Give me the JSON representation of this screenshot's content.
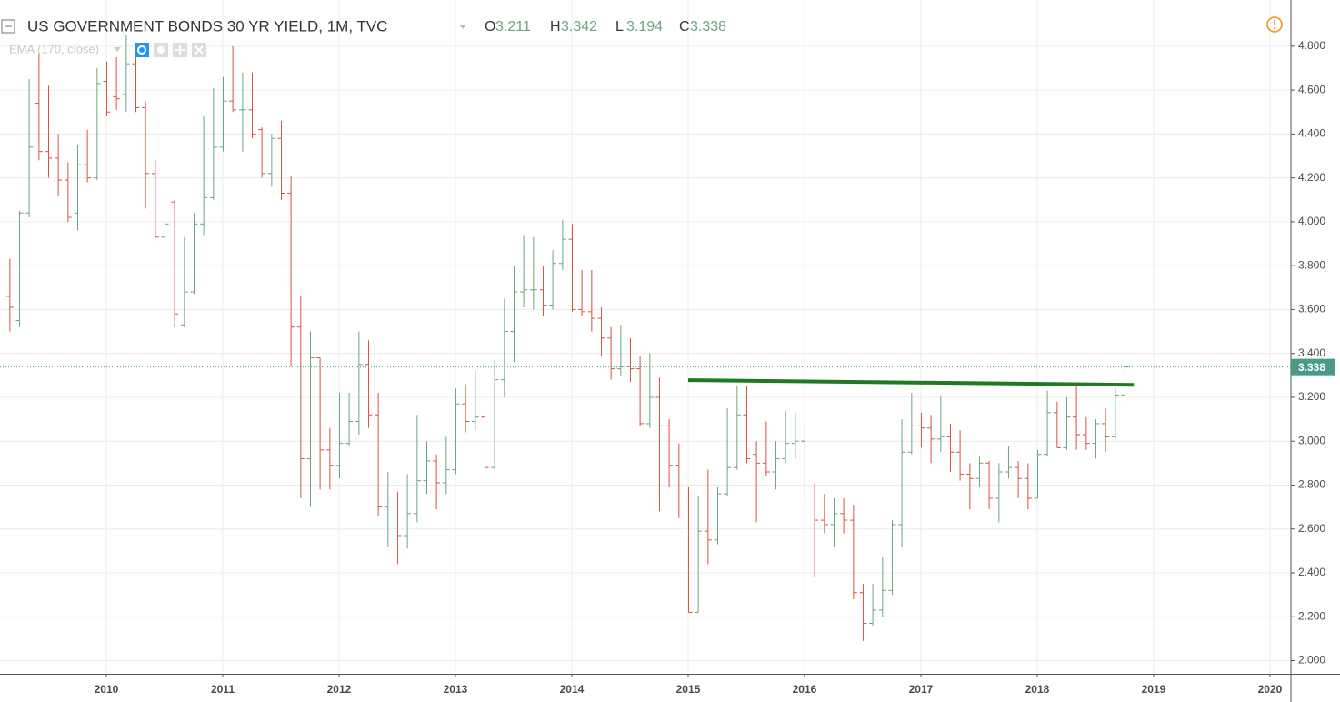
{
  "chart_data": {
    "type": "ohlc",
    "title": "US GOVERNMENT BONDS 30 YR YIELD, 1M, TVC",
    "ohlc_labels": [
      "O",
      "H",
      "L",
      "C"
    ],
    "indicator": "EMA (170, close)",
    "up_color": "#6ba583",
    "down_color": "#d75442",
    "grid": true,
    "x": [
      2009.167,
      2009.25,
      2009.333,
      2009.417,
      2009.5,
      2009.583,
      2009.667,
      2009.75,
      2009.833,
      2009.917,
      2010.0,
      2010.083,
      2010.167,
      2010.25,
      2010.333,
      2010.417,
      2010.5,
      2010.583,
      2010.667,
      2010.75,
      2010.833,
      2010.917,
      2011.0,
      2011.083,
      2011.167,
      2011.25,
      2011.333,
      2011.417,
      2011.5,
      2011.583,
      2011.667,
      2011.75,
      2011.833,
      2011.917,
      2012.0,
      2012.083,
      2012.167,
      2012.25,
      2012.333,
      2012.417,
      2012.5,
      2012.583,
      2012.667,
      2012.75,
      2012.833,
      2012.917,
      2013.0,
      2013.083,
      2013.167,
      2013.25,
      2013.333,
      2013.417,
      2013.5,
      2013.583,
      2013.667,
      2013.75,
      2013.833,
      2013.917,
      2014.0,
      2014.083,
      2014.167,
      2014.25,
      2014.333,
      2014.417,
      2014.5,
      2014.583,
      2014.667,
      2014.75,
      2014.833,
      2014.917,
      2015.0,
      2015.083,
      2015.167,
      2015.25,
      2015.333,
      2015.417,
      2015.5,
      2015.583,
      2015.667,
      2015.75,
      2015.833,
      2015.917,
      2016.0,
      2016.083,
      2016.167,
      2016.25,
      2016.333,
      2016.417,
      2016.5,
      2016.583,
      2016.667,
      2016.75,
      2016.833,
      2016.917,
      2017.0,
      2017.083,
      2017.167,
      2017.25,
      2017.333,
      2017.417,
      2017.5,
      2017.583,
      2017.667,
      2017.75,
      2017.833,
      2017.917,
      2018.0,
      2018.083,
      2018.167,
      2018.25,
      2018.333,
      2018.417,
      2018.5,
      2018.583,
      2018.667,
      2018.75
    ],
    "open": [
      3.66,
      3.55,
      4.04,
      4.54,
      4.32,
      4.29,
      4.19,
      4.04,
      4.26,
      4.2,
      4.64,
      4.57,
      4.58,
      4.72,
      4.52,
      4.22,
      3.93,
      4.09,
      3.53,
      3.68,
      3.99,
      4.11,
      4.34,
      4.55,
      4.51,
      4.51,
      4.42,
      4.22,
      4.38,
      4.13,
      3.52,
      2.92,
      3.38,
      2.96,
      2.89,
      2.99,
      3.09,
      3.35,
      3.12,
      2.7,
      2.75,
      2.57,
      2.67,
      2.82,
      2.91,
      2.81,
      2.87,
      3.17,
      3.09,
      3.11,
      2.88,
      3.28,
      3.5,
      3.68,
      3.69,
      3.69,
      3.62,
      3.81,
      3.92,
      3.6,
      3.59,
      3.56,
      3.47,
      3.33,
      3.34,
      3.33,
      3.08,
      3.2,
      3.07,
      2.89,
      2.75,
      2.22,
      2.59,
      2.55,
      2.76,
      2.88,
      3.12,
      2.94,
      2.9,
      2.86,
      2.92,
      2.99,
      3.0,
      2.75,
      2.64,
      2.62,
      2.67,
      2.64,
      2.31,
      2.17,
      2.23,
      2.32,
      2.62,
      2.95,
      3.07,
      3.06,
      3.01,
      3.02,
      2.95,
      2.85,
      2.83,
      2.9,
      2.74,
      2.86,
      2.88,
      2.83,
      2.74,
      2.94,
      3.13,
      2.97,
      3.11,
      3.03,
      2.99,
      3.08,
      3.02,
      3.211
    ],
    "high": [
      3.83,
      4.05,
      4.65,
      4.77,
      4.62,
      4.4,
      4.27,
      4.35,
      4.42,
      4.7,
      4.73,
      4.75,
      4.85,
      4.77,
      4.55,
      4.28,
      4.11,
      4.1,
      3.93,
      4.04,
      4.48,
      4.61,
      4.66,
      4.8,
      4.68,
      4.68,
      4.43,
      4.4,
      4.46,
      4.21,
      3.66,
      3.5,
      3.38,
      3.06,
      3.22,
      3.22,
      3.5,
      3.46,
      3.22,
      2.86,
      2.77,
      2.85,
      3.12,
      3.0,
      2.94,
      3.02,
      3.24,
      3.26,
      3.32,
      3.14,
      3.37,
      3.65,
      3.8,
      3.94,
      3.93,
      3.8,
      3.87,
      4.01,
      3.99,
      3.78,
      3.78,
      3.61,
      3.52,
      3.53,
      3.47,
      3.39,
      3.4,
      3.29,
      3.1,
      2.99,
      2.79,
      2.75,
      2.87,
      2.79,
      3.15,
      3.25,
      3.25,
      3.0,
      3.09,
      3.0,
      3.14,
      3.13,
      3.08,
      2.81,
      2.76,
      2.74,
      2.74,
      2.71,
      2.35,
      2.35,
      2.47,
      2.64,
      3.1,
      3.22,
      3.13,
      3.12,
      3.21,
      3.08,
      3.05,
      2.9,
      2.93,
      2.91,
      2.9,
      2.98,
      2.91,
      2.9,
      2.96,
      3.23,
      3.18,
      3.2,
      3.25,
      3.11,
      3.1,
      3.15,
      3.24,
      3.342
    ],
    "low": [
      3.5,
      3.52,
      4.02,
      4.28,
      4.2,
      4.12,
      4.0,
      3.96,
      4.18,
      4.19,
      4.48,
      4.51,
      4.5,
      4.5,
      4.06,
      3.93,
      3.9,
      3.52,
      3.52,
      3.67,
      3.94,
      4.1,
      4.32,
      4.5,
      4.32,
      4.38,
      4.2,
      4.16,
      4.1,
      3.34,
      2.74,
      2.7,
      2.78,
      2.78,
      2.83,
      2.98,
      3.03,
      3.06,
      2.66,
      2.52,
      2.44,
      2.51,
      2.63,
      2.76,
      2.69,
      2.76,
      2.85,
      3.04,
      3.05,
      2.81,
      2.87,
      3.2,
      3.36,
      3.61,
      3.6,
      3.57,
      3.6,
      3.78,
      3.59,
      3.57,
      3.5,
      3.39,
      3.28,
      3.3,
      3.27,
      3.07,
      3.06,
      2.68,
      2.79,
      2.65,
      2.22,
      2.22,
      2.44,
      2.53,
      2.75,
      2.87,
      2.9,
      2.63,
      2.84,
      2.78,
      2.9,
      2.92,
      2.74,
      2.38,
      2.58,
      2.52,
      2.58,
      2.28,
      2.09,
      2.16,
      2.2,
      2.3,
      2.52,
      2.94,
      2.97,
      2.9,
      2.95,
      2.86,
      2.82,
      2.69,
      2.79,
      2.69,
      2.63,
      2.83,
      2.74,
      2.69,
      2.74,
      2.93,
      2.97,
      2.96,
      2.96,
      2.96,
      2.92,
      2.95,
      3.01,
      3.194
    ],
    "close": [
      3.61,
      4.04,
      4.34,
      4.32,
      4.29,
      4.19,
      4.02,
      4.26,
      4.2,
      4.63,
      4.5,
      4.56,
      4.72,
      4.52,
      4.22,
      3.93,
      3.99,
      3.58,
      3.68,
      3.99,
      4.11,
      4.34,
      4.55,
      4.51,
      4.51,
      4.4,
      4.22,
      4.38,
      4.13,
      3.52,
      2.92,
      3.38,
      2.96,
      2.89,
      2.99,
      3.09,
      3.35,
      3.12,
      2.7,
      2.75,
      2.57,
      2.67,
      2.82,
      2.91,
      2.81,
      2.87,
      3.17,
      3.09,
      3.11,
      2.88,
      3.28,
      3.5,
      3.68,
      3.69,
      3.69,
      3.62,
      3.81,
      3.92,
      3.6,
      3.59,
      3.56,
      3.47,
      3.33,
      3.34,
      3.33,
      3.08,
      3.2,
      3.07,
      2.89,
      2.75,
      2.22,
      2.59,
      2.55,
      2.76,
      2.88,
      3.12,
      2.92,
      2.9,
      2.86,
      2.92,
      2.99,
      3.0,
      2.75,
      2.64,
      2.62,
      2.67,
      2.64,
      2.31,
      2.17,
      2.23,
      2.32,
      2.62,
      2.95,
      3.07,
      3.06,
      3.01,
      3.02,
      2.95,
      2.85,
      2.83,
      2.9,
      2.74,
      2.86,
      2.88,
      2.83,
      2.74,
      2.94,
      3.13,
      2.97,
      3.11,
      3.03,
      2.99,
      3.08,
      3.02,
      3.21,
      3.338
    ],
    "xlim": [
      2009.086,
      2020.18
    ],
    "xticks": [
      2010,
      2011,
      2012,
      2013,
      2014,
      2015,
      2016,
      2017,
      2018,
      2019,
      2020
    ],
    "ylim": [
      1.94,
      4.99
    ],
    "yticks": [
      {
        "value": 2.0,
        "label": "2.000"
      },
      {
        "value": 2.2,
        "label": "2.200"
      },
      {
        "value": 2.4,
        "label": "2.400"
      },
      {
        "value": 2.6,
        "label": "2.600"
      },
      {
        "value": 2.8,
        "label": "2.800"
      },
      {
        "value": 3.0,
        "label": "3.000"
      },
      {
        "value": 3.2,
        "label": "3.200"
      },
      {
        "value": 3.4,
        "label": "3.400"
      },
      {
        "value": 3.6,
        "label": "3.600"
      },
      {
        "value": 3.8,
        "label": "3.800"
      },
      {
        "value": 4.0,
        "label": "4.000"
      },
      {
        "value": 4.2,
        "label": "4.200"
      },
      {
        "value": 4.4,
        "label": "4.400"
      },
      {
        "value": 4.6,
        "label": "4.600"
      },
      {
        "value": 4.8,
        "label": "4.800"
      }
    ],
    "last_price_color": "#4a9a8a",
    "trendline": {
      "x": [
        2015.0,
        2018.83
      ],
      "y": [
        3.278,
        3.257
      ],
      "color": "#1f7a22"
    }
  }
}
